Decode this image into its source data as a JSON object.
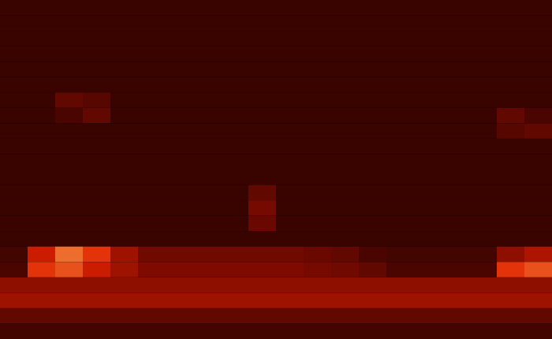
{
  "chart_data": {
    "type": "heatmap",
    "tick_labels": false,
    "xlim": [
      0,
      20
    ],
    "ylim": [
      0,
      22
    ],
    "zlim": [
      0,
      100
    ],
    "colors": [
      "#140000",
      "#7a0a00",
      "#e02000",
      "#ffe070"
    ],
    "cells": [
      [
        12,
        12,
        12,
        12,
        12,
        12,
        12,
        12,
        12,
        12,
        12,
        12,
        12,
        12,
        12,
        12,
        12,
        12,
        12,
        12
      ],
      [
        12,
        12,
        12,
        12,
        12,
        12,
        12,
        12,
        12,
        12,
        12,
        12,
        12,
        12,
        12,
        12,
        12,
        12,
        12,
        12
      ],
      [
        12,
        12,
        12,
        12,
        12,
        12,
        12,
        12,
        12,
        12,
        12,
        12,
        12,
        12,
        12,
        12,
        12,
        12,
        12,
        12
      ],
      [
        12,
        12,
        12,
        12,
        12,
        12,
        12,
        12,
        12,
        12,
        12,
        12,
        12,
        12,
        12,
        12,
        12,
        12,
        12,
        12
      ],
      [
        12,
        12,
        12,
        12,
        12,
        12,
        12,
        12,
        12,
        12,
        12,
        12,
        12,
        12,
        12,
        12,
        12,
        12,
        12,
        12
      ],
      [
        12,
        12,
        12,
        12,
        12,
        12,
        12,
        12,
        12,
        12,
        12,
        12,
        12,
        12,
        12,
        12,
        12,
        12,
        12,
        12
      ],
      [
        12,
        12,
        25,
        22,
        12,
        12,
        12,
        12,
        12,
        12,
        12,
        12,
        12,
        12,
        12,
        12,
        12,
        12,
        12,
        12
      ],
      [
        12,
        12,
        18,
        25,
        12,
        12,
        12,
        12,
        12,
        12,
        12,
        12,
        12,
        12,
        12,
        12,
        12,
        12,
        25,
        18
      ],
      [
        12,
        12,
        12,
        12,
        12,
        12,
        12,
        12,
        12,
        12,
        12,
        12,
        12,
        12,
        12,
        12,
        12,
        12,
        22,
        25
      ],
      [
        12,
        12,
        12,
        12,
        12,
        12,
        12,
        12,
        12,
        12,
        12,
        12,
        12,
        12,
        12,
        12,
        12,
        12,
        12,
        12
      ],
      [
        12,
        12,
        12,
        12,
        12,
        12,
        12,
        12,
        12,
        12,
        12,
        12,
        12,
        12,
        12,
        12,
        12,
        12,
        12,
        12
      ],
      [
        12,
        12,
        12,
        12,
        12,
        12,
        12,
        12,
        12,
        12,
        12,
        12,
        12,
        12,
        12,
        12,
        12,
        12,
        12,
        12
      ],
      [
        12,
        12,
        12,
        12,
        12,
        12,
        12,
        12,
        12,
        25,
        12,
        12,
        12,
        12,
        12,
        12,
        12,
        12,
        12,
        12
      ],
      [
        12,
        12,
        12,
        12,
        12,
        12,
        12,
        12,
        12,
        32,
        12,
        12,
        12,
        12,
        12,
        12,
        12,
        12,
        12,
        12
      ],
      [
        12,
        12,
        12,
        12,
        12,
        12,
        12,
        12,
        12,
        28,
        12,
        12,
        12,
        12,
        12,
        12,
        12,
        12,
        12,
        12
      ],
      [
        12,
        12,
        12,
        12,
        12,
        12,
        12,
        12,
        12,
        12,
        12,
        12,
        12,
        12,
        12,
        12,
        12,
        12,
        12,
        12
      ],
      [
        15,
        60,
        80,
        70,
        45,
        30,
        30,
        30,
        30,
        30,
        30,
        28,
        25,
        18,
        15,
        15,
        15,
        15,
        40,
        50
      ],
      [
        18,
        70,
        75,
        60,
        45,
        35,
        35,
        35,
        35,
        35,
        35,
        32,
        30,
        25,
        18,
        18,
        18,
        18,
        70,
        75
      ],
      [
        40,
        40,
        40,
        40,
        40,
        40,
        40,
        40,
        40,
        40,
        40,
        40,
        40,
        40,
        40,
        40,
        40,
        40,
        40,
        40
      ],
      [
        45,
        45,
        45,
        45,
        45,
        45,
        45,
        45,
        45,
        45,
        45,
        45,
        45,
        45,
        45,
        45,
        45,
        45,
        45,
        45
      ],
      [
        25,
        25,
        25,
        25,
        25,
        25,
        25,
        25,
        25,
        25,
        25,
        25,
        25,
        25,
        25,
        25,
        25,
        25,
        25,
        25
      ],
      [
        15,
        15,
        15,
        15,
        15,
        15,
        15,
        15,
        15,
        15,
        15,
        15,
        15,
        15,
        15,
        15,
        15,
        15,
        15,
        15
      ]
    ]
  }
}
